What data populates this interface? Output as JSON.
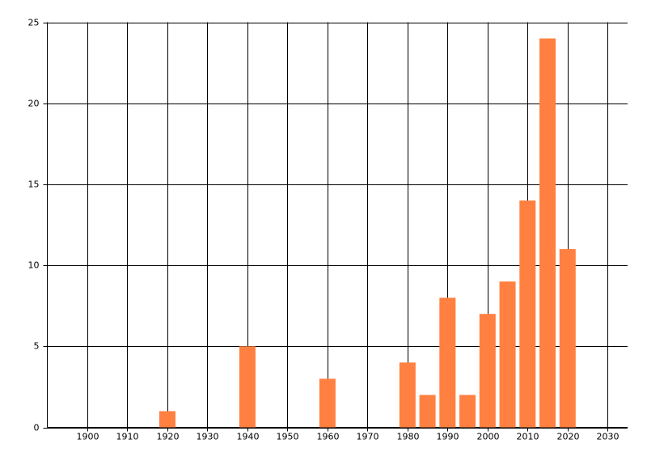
{
  "chart_data": {
    "type": "bar",
    "x": [
      1920,
      1940,
      1960,
      1980,
      1985,
      1990,
      1995,
      2000,
      2005,
      2010,
      2015,
      2020
    ],
    "values": [
      1,
      5,
      3,
      4,
      2,
      8,
      2,
      7,
      9,
      14,
      24,
      11
    ],
    "color": "#ff8040",
    "xlim": [
      1890,
      2035
    ],
    "xticks": [
      1900,
      1910,
      1920,
      1930,
      1940,
      1950,
      1960,
      1970,
      1980,
      1990,
      2000,
      2010,
      2020,
      2030
    ],
    "ylim": [
      0,
      25
    ],
    "yticks": [
      0,
      5,
      10,
      15,
      20,
      25
    ],
    "grid": true
  }
}
